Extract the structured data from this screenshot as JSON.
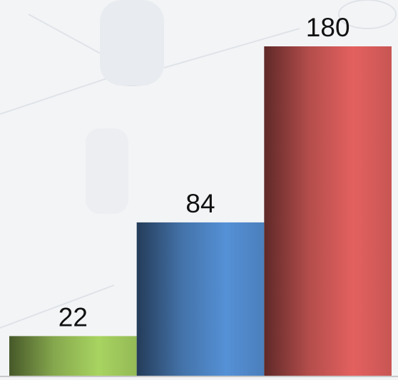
{
  "chart_data": {
    "type": "bar",
    "categories": [
      null,
      null,
      null
    ],
    "values": [
      22,
      84,
      180
    ],
    "colors": [
      "#9cc45a",
      "#4f86c6",
      "#d25a58"
    ]
  }
}
